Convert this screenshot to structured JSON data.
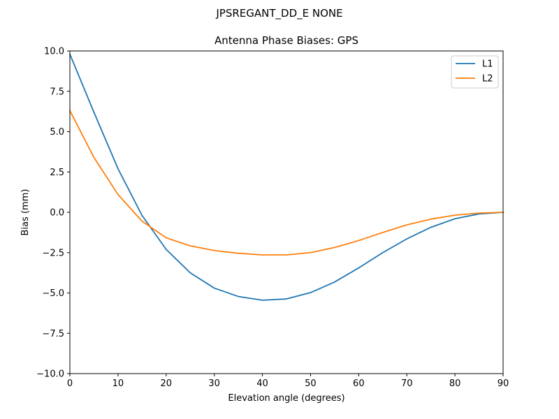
{
  "chart_data": {
    "type": "line",
    "suptitle": "JPSREGANT_DD_E  NONE",
    "title": "Antenna Phase Biases: GPS",
    "xlabel": "Elevation angle (degrees)",
    "ylabel": "Bias (mm)",
    "xlim": [
      0,
      90
    ],
    "ylim": [
      -10,
      10
    ],
    "xticks": [
      0,
      10,
      20,
      30,
      40,
      50,
      60,
      70,
      80,
      90
    ],
    "xtick_labels": [
      "0",
      "10",
      "20",
      "30",
      "40",
      "50",
      "60",
      "70",
      "80",
      "90"
    ],
    "yticks": [
      10,
      7.5,
      5,
      2.5,
      0,
      -2.5,
      -5,
      -7.5,
      -10
    ],
    "ytick_labels": [
      "10.0",
      "7.5",
      "5.0",
      "2.5",
      "0.0",
      "−2.5",
      "−5.0",
      "−7.5",
      "−10.0"
    ],
    "grid": false,
    "legend_position": "top-right",
    "x": [
      0,
      5,
      10,
      15,
      20,
      25,
      30,
      35,
      40,
      45,
      50,
      55,
      60,
      65,
      70,
      75,
      80,
      85,
      90
    ],
    "series": [
      {
        "name": "L1",
        "color": "#1f77b4",
        "values": [
          9.8,
          6.2,
          2.7,
          -0.2,
          -2.3,
          -3.75,
          -4.7,
          -5.22,
          -5.45,
          -5.37,
          -4.98,
          -4.32,
          -3.45,
          -2.5,
          -1.65,
          -0.93,
          -0.4,
          -0.1,
          0.0
        ]
      },
      {
        "name": "L2",
        "color": "#ff7f0e",
        "values": [
          6.3,
          3.4,
          1.1,
          -0.55,
          -1.58,
          -2.08,
          -2.37,
          -2.54,
          -2.64,
          -2.64,
          -2.5,
          -2.18,
          -1.75,
          -1.25,
          -0.78,
          -0.42,
          -0.18,
          -0.05,
          0.0
        ]
      }
    ]
  }
}
